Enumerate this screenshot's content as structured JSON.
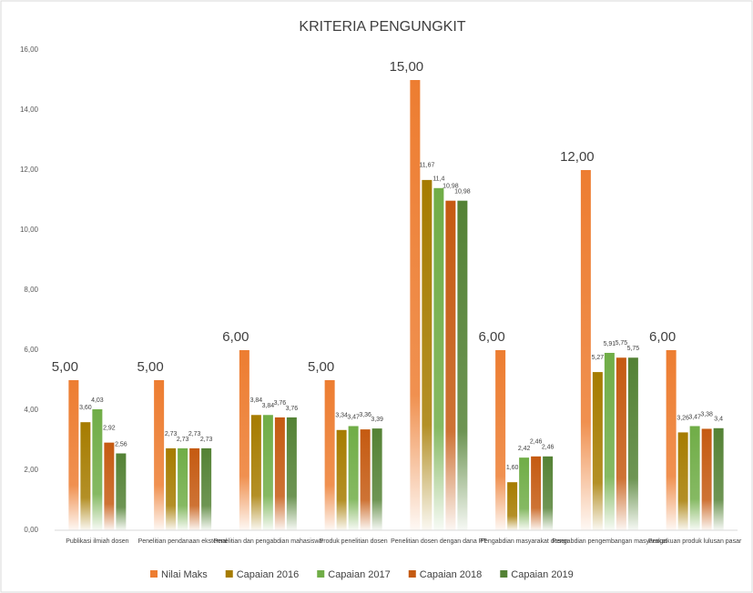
{
  "chart_data": {
    "type": "bar",
    "title": "KRITERIA PENGUNGKIT",
    "categories": [
      "Publikasi ilmiah dosen",
      "Penelitian pendanaan eksternal",
      "Penelitian dan pengabdian mahasiswa",
      "Produk penelitian dosen",
      "Penelitian dosen dengan dana PT",
      "Pengabdian masyarakat dosen",
      "Pengabdian pengembangan masyarakat",
      "Pengakuan produk lulusan pasar"
    ],
    "series": [
      {
        "name": "Nilai Maks",
        "color": "#ed7d31",
        "values": [
          5,
          5,
          6,
          5,
          15,
          6,
          12,
          6
        ],
        "value_labels": [
          "5,00",
          "5,00",
          "6,00",
          "5,00",
          "15,00",
          "6,00",
          "12,00",
          "6,00"
        ]
      },
      {
        "name": "Capaian 2016",
        "color": "#a67c00",
        "values": [
          3.6,
          2.73,
          3.84,
          3.34,
          11.67,
          1.6,
          5.27,
          3.26
        ],
        "value_labels": [
          "3,60",
          "2,73",
          "3,84",
          "3,34",
          "11,67",
          "1,60",
          "5,27",
          "3,26"
        ]
      },
      {
        "name": "Capaian 2017",
        "color": "#70ad47",
        "values": [
          4.03,
          2.73,
          3.84,
          3.47,
          11.4,
          2.42,
          5.91,
          3.47
        ],
        "value_labels": [
          "4,03",
          "2,73",
          "3,84",
          "3,47",
          "11,4",
          "2,42",
          "5,91",
          "3,47"
        ]
      },
      {
        "name": "Capaian 2018",
        "color": "#c55a11",
        "values": [
          2.92,
          2.73,
          3.76,
          3.36,
          10.98,
          2.46,
          5.75,
          3.38
        ],
        "value_labels": [
          "2,92",
          "2,73",
          "3,76",
          "3,36",
          "10,98",
          "2,46",
          "5,75",
          "3,38"
        ]
      },
      {
        "name": "Capaian 2019",
        "color": "#548235",
        "values": [
          2.56,
          2.73,
          3.76,
          3.39,
          10.98,
          2.46,
          5.75,
          3.4
        ],
        "value_labels": [
          "2,56",
          "2,73",
          "3,76",
          "3,39",
          "10,98",
          "2,46",
          "5,75",
          "3,4"
        ]
      }
    ],
    "ylim": [
      0,
      16
    ],
    "yticks": [
      {
        "value": 0,
        "label": "0,00"
      },
      {
        "value": 2,
        "label": "2,00"
      },
      {
        "value": 4,
        "label": "4,00"
      },
      {
        "value": 6,
        "label": "6,00"
      },
      {
        "value": 8,
        "label": "8,00"
      },
      {
        "value": 10,
        "label": "10,00"
      },
      {
        "value": 12,
        "label": "12,00"
      },
      {
        "value": 14,
        "label": "14,00"
      },
      {
        "value": 16,
        "label": "16,00"
      }
    ],
    "grid": false,
    "legend": "bottom"
  }
}
